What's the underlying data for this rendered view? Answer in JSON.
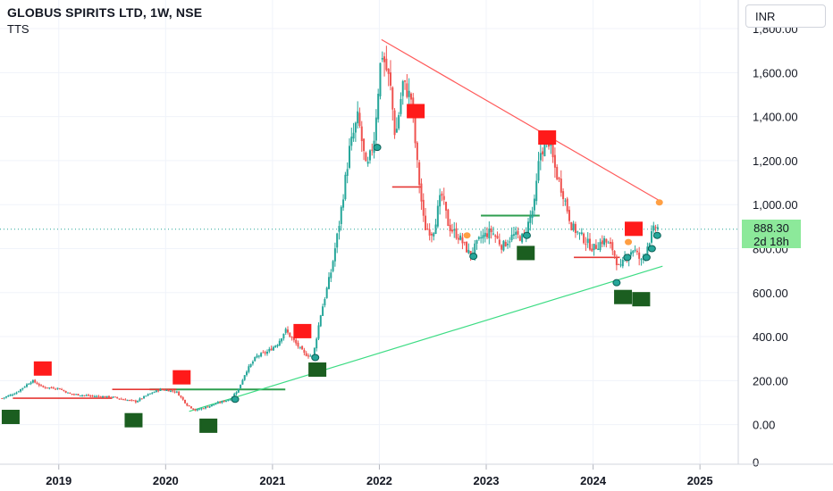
{
  "header": {
    "title": "GLOBUS SPIRITS LTD, 1W, NSE",
    "indicator": "TTS"
  },
  "currency_button": "INR",
  "price_badge": {
    "price": "888.30",
    "countdown": "2d 18h"
  },
  "colors": {
    "up": "#26a69a",
    "down": "#ef5350",
    "support": "#3ddc84",
    "resistance": "#ff5b5b",
    "signal_sell": "#ff1a1a",
    "signal_buy": "#1b5e20",
    "badge": "#8ce99a",
    "dot_orange": "#ff9f43",
    "dot_teal": "#26a69a"
  },
  "chart_data": {
    "type": "candlestick",
    "y_axis": {
      "ticks": [
        0,
        200,
        400,
        600,
        800,
        1000,
        1200,
        1400,
        1600,
        1800
      ],
      "labels": [
        "0.00",
        "200.00",
        "400.00",
        "600.00",
        "800.00",
        "1,000.00",
        "1,200.00",
        "1,400.00",
        "1,600.00",
        "1,800.00"
      ],
      "extra_label": "0",
      "extra_value": -170,
      "range": [
        -180,
        1930
      ]
    },
    "x_axis": {
      "ticks": [
        2019,
        2020,
        2021,
        2022,
        2023,
        2024,
        2025
      ],
      "labels": [
        "2019",
        "2020",
        "2021",
        "2022",
        "2023",
        "2024",
        "2025"
      ],
      "range": [
        2018.45,
        2025.35
      ]
    },
    "last_price": 888.3,
    "price_path": [
      [
        2018.47,
        120
      ],
      [
        2018.6,
        145
      ],
      [
        2018.75,
        200
      ],
      [
        2018.85,
        170
      ],
      [
        2019.0,
        165
      ],
      [
        2019.1,
        140
      ],
      [
        2019.3,
        130
      ],
      [
        2019.5,
        125
      ],
      [
        2019.6,
        115
      ],
      [
        2019.72,
        105
      ],
      [
        2019.85,
        140
      ],
      [
        2019.95,
        160
      ],
      [
        2020.1,
        150
      ],
      [
        2020.2,
        90
      ],
      [
        2020.28,
        65
      ],
      [
        2020.38,
        80
      ],
      [
        2020.5,
        100
      ],
      [
        2020.6,
        115
      ],
      [
        2020.68,
        160
      ],
      [
        2020.75,
        240
      ],
      [
        2020.85,
        310
      ],
      [
        2020.95,
        330
      ],
      [
        2021.05,
        370
      ],
      [
        2021.12,
        430
      ],
      [
        2021.2,
        380
      ],
      [
        2021.3,
        320
      ],
      [
        2021.38,
        310
      ],
      [
        2021.45,
        500
      ],
      [
        2021.55,
        700
      ],
      [
        2021.62,
        900
      ],
      [
        2021.72,
        1250
      ],
      [
        2021.8,
        1400
      ],
      [
        2021.88,
        1150
      ],
      [
        2021.95,
        1300
      ],
      [
        2022.02,
        1700
      ],
      [
        2022.1,
        1550
      ],
      [
        2022.15,
        1300
      ],
      [
        2022.22,
        1550
      ],
      [
        2022.3,
        1480
      ],
      [
        2022.35,
        1200
      ],
      [
        2022.42,
        900
      ],
      [
        2022.5,
        870
      ],
      [
        2022.58,
        1050
      ],
      [
        2022.65,
        900
      ],
      [
        2022.75,
        850
      ],
      [
        2022.85,
        770
      ],
      [
        2022.95,
        850
      ],
      [
        2023.05,
        880
      ],
      [
        2023.15,
        810
      ],
      [
        2023.25,
        860
      ],
      [
        2023.35,
        850
      ],
      [
        2023.45,
        1000
      ],
      [
        2023.5,
        1230
      ],
      [
        2023.58,
        1300
      ],
      [
        2023.65,
        1150
      ],
      [
        2023.72,
        1050
      ],
      [
        2023.8,
        900
      ],
      [
        2023.9,
        850
      ],
      [
        2024.0,
        800
      ],
      [
        2024.1,
        840
      ],
      [
        2024.18,
        800
      ],
      [
        2024.25,
        700
      ],
      [
        2024.3,
        760
      ],
      [
        2024.38,
        800
      ],
      [
        2024.45,
        740
      ],
      [
        2024.52,
        830
      ],
      [
        2024.58,
        900
      ],
      [
        2024.62,
        890
      ]
    ],
    "lines": {
      "resistance_trend": [
        [
          2022.02,
          1750
        ],
        [
          2024.65,
          1010
        ]
      ],
      "support_trend": [
        [
          2020.22,
          60
        ],
        [
          2024.65,
          720
        ]
      ],
      "green_levels": [
        {
          "x": [
            2019.85,
            2021.12
          ],
          "y": 160
        },
        {
          "x": [
            2022.95,
            2023.5
          ],
          "y": 950
        }
      ],
      "red_levels": [
        {
          "x": [
            2018.57,
            2019.5
          ],
          "y": 120
        },
        {
          "x": [
            2019.5,
            2020.1
          ],
          "y": 160
        },
        {
          "x": [
            2022.12,
            2022.4
          ],
          "y": 1080
        },
        {
          "x": [
            2023.82,
            2024.25
          ],
          "y": 760
        }
      ]
    },
    "signals": {
      "sell": [
        [
          2018.85,
          255
        ],
        [
          2020.15,
          215
        ],
        [
          2021.28,
          425
        ],
        [
          2022.34,
          1425
        ],
        [
          2023.57,
          1305
        ],
        [
          2024.38,
          890
        ]
      ],
      "buy": [
        [
          2018.55,
          35
        ],
        [
          2019.7,
          20
        ],
        [
          2020.4,
          -5
        ],
        [
          2021.42,
          250
        ],
        [
          2023.37,
          780
        ],
        [
          2024.28,
          580
        ],
        [
          2024.45,
          570
        ]
      ]
    },
    "markers": {
      "teal": [
        [
          2020.65,
          115
        ],
        [
          2021.4,
          305
        ],
        [
          2021.98,
          1260
        ],
        [
          2022.88,
          765
        ],
        [
          2023.38,
          860
        ],
        [
          2024.22,
          645
        ],
        [
          2024.32,
          760
        ],
        [
          2024.5,
          760
        ],
        [
          2024.55,
          800
        ],
        [
          2024.6,
          860
        ]
      ],
      "orange": [
        [
          2022.82,
          860
        ],
        [
          2024.33,
          830
        ],
        [
          2024.62,
          1010
        ]
      ]
    }
  }
}
